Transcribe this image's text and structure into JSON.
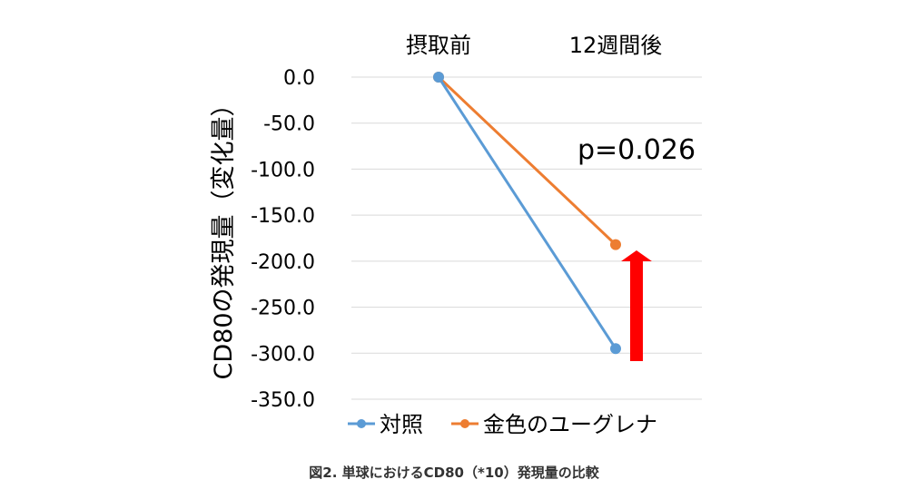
{
  "chart_data": {
    "type": "line",
    "categories": [
      "摂取前",
      "12週間後"
    ],
    "series": [
      {
        "name": "対照",
        "values": [
          0.0,
          -295.0
        ],
        "color": "#5b9bd5"
      },
      {
        "name": "金色のユーグレナ",
        "values": [
          0.0,
          -182.0
        ],
        "color": "#ed7d31"
      }
    ],
    "ylabel": "CD80の発現量（変化量）",
    "ylim": [
      -350,
      0
    ],
    "ytick_step": 50,
    "yticks": [
      "0.0",
      "-50.0",
      "-100.0",
      "-150.0",
      "-200.0",
      "-250.0",
      "-300.0",
      "-350.0"
    ],
    "grid": true,
    "legend": "bottom",
    "annotation": "p=0.026",
    "arrow_color": "#ff0000",
    "caption": "図2. 単球におけるCD80（*10）発現量の比較"
  }
}
